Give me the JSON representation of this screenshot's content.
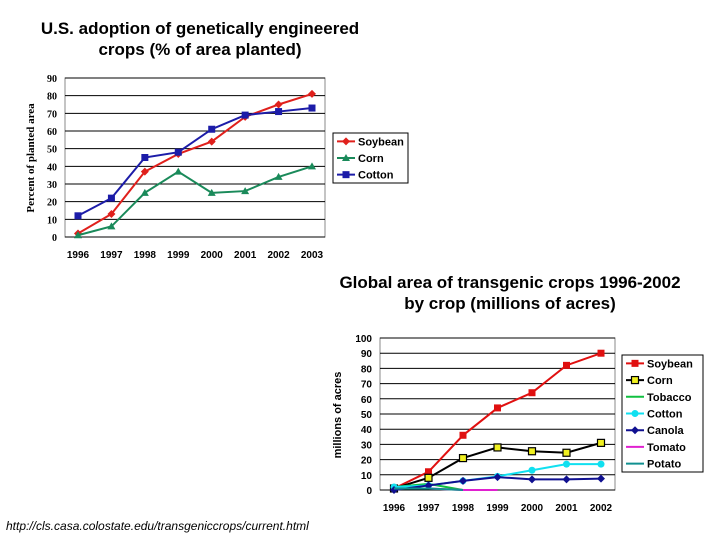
{
  "chart_data": [
    {
      "type": "line",
      "title": "U.S. adoption of genetically engineered crops (% of area planted)",
      "title_lines": [
        "U.S. adoption of genetically engineered",
        "crops (% of area planted)"
      ],
      "xlabel": "",
      "ylabel": "Percent of planted area",
      "categories": [
        "1996",
        "1997",
        "1998",
        "1999",
        "2000",
        "2001",
        "2002",
        "2003"
      ],
      "ylim": [
        0,
        90
      ],
      "yticks": [
        0,
        10,
        20,
        30,
        40,
        50,
        60,
        70,
        80,
        90
      ],
      "grid": true,
      "legend": "right",
      "series": [
        {
          "name": "Soybean",
          "color": "#e0201c",
          "marker": "diamond",
          "values": [
            2,
            13,
            37,
            47,
            54,
            68,
            75,
            81
          ]
        },
        {
          "name": "Corn",
          "color": "#1a8a5a",
          "marker": "triangle",
          "values": [
            1,
            6,
            25,
            37,
            25,
            26,
            34,
            40
          ]
        },
        {
          "name": "Cotton",
          "color": "#1c1ca8",
          "marker": "square",
          "values": [
            12,
            22,
            45,
            48,
            61,
            69,
            71,
            73
          ]
        }
      ]
    },
    {
      "type": "line",
      "title": "Global area of transgenic crops 1996-2002 by crop (millions of acres)",
      "title_lines": [
        "Global area of transgenic crops 1996-2002",
        "by crop (millions of acres)"
      ],
      "xlabel": "",
      "ylabel": "millions of acres",
      "categories": [
        "1996",
        "1997",
        "1998",
        "1999",
        "2000",
        "2001",
        "2002"
      ],
      "ylim": [
        0,
        100
      ],
      "yticks": [
        0,
        10,
        20,
        30,
        40,
        50,
        60,
        70,
        80,
        90,
        100
      ],
      "grid": true,
      "legend": "right",
      "series": [
        {
          "name": "Soybean",
          "color": "#e01010",
          "marker": "square",
          "values": [
            1,
            12,
            36,
            54,
            64,
            82,
            90
          ]
        },
        {
          "name": "Corn",
          "color": "#000000",
          "fill": "#f0f020",
          "marker": "square-open",
          "values": [
            1,
            8,
            21,
            28,
            25.5,
            24.5,
            31
          ]
        },
        {
          "name": "Tobacco",
          "color": "#10c040",
          "marker": "none",
          "values": [
            2,
            4,
            0,
            0,
            null,
            null,
            null
          ]
        },
        {
          "name": "Cotton",
          "color": "#10e0f0",
          "marker": "circle",
          "values": [
            2,
            3,
            6,
            9,
            13,
            17,
            17
          ]
        },
        {
          "name": "Canola",
          "color": "#101090",
          "marker": "diamond",
          "values": [
            0,
            3,
            6,
            8.5,
            7,
            7,
            7.5
          ]
        },
        {
          "name": "Tomato",
          "color": "#e020d0",
          "marker": "none",
          "values": [
            1,
            1,
            0,
            0,
            null,
            null,
            null
          ]
        },
        {
          "name": "Potato",
          "color": "#109090",
          "marker": "none",
          "values": [
            1,
            1,
            0,
            null,
            null,
            null,
            null
          ]
        }
      ]
    }
  ],
  "source": "http://cls.casa.colostate.edu/transgeniccrops/current.html"
}
